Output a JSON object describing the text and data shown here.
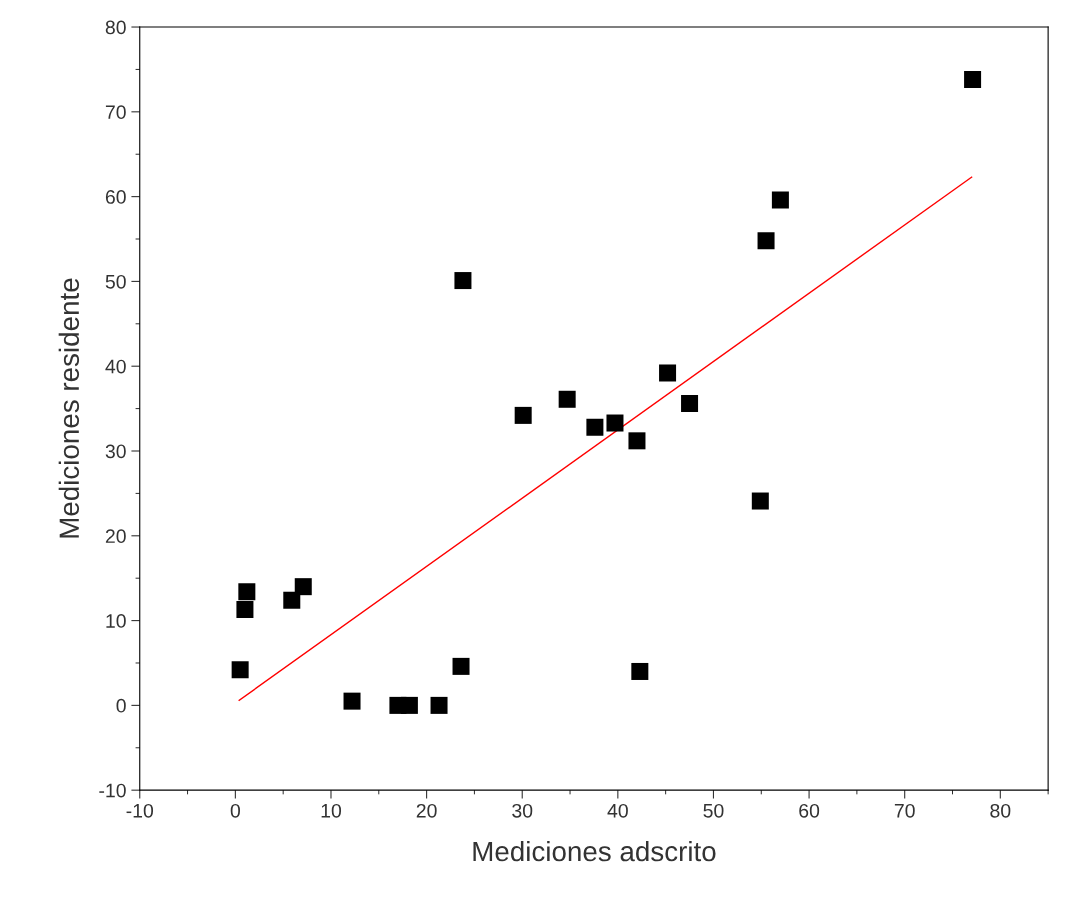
{
  "chart_data": {
    "type": "scatter",
    "xlabel": "Mediciones adscrito",
    "ylabel": "Mediciones residente",
    "xlim": [
      -10,
      85
    ],
    "ylim": [
      -10,
      80
    ],
    "xticks": [
      -10,
      0,
      10,
      20,
      30,
      40,
      50,
      60,
      70,
      80
    ],
    "yticks": [
      -10,
      0,
      10,
      20,
      30,
      40,
      50,
      60,
      70,
      80
    ],
    "grid": false,
    "legend": false,
    "series": [
      {
        "marker": "square",
        "color": "#000000",
        "x": [
          0.5,
          1.0,
          1.2,
          5.9,
          7.1,
          12.2,
          17.0,
          18.2,
          21.3,
          23.6,
          23.8,
          30.1,
          34.7,
          37.6,
          39.7,
          42.0,
          42.3,
          45.2,
          47.5,
          54.9,
          55.5,
          57.0,
          77.1
        ],
        "values": [
          4.2,
          11.3,
          13.4,
          12.4,
          14.0,
          0.5,
          0,
          0,
          0,
          4.6,
          50.1,
          34.2,
          36.1,
          32.8,
          33.3,
          31.2,
          4.0,
          39.2,
          35.6,
          24.1,
          54.8,
          59.6,
          73.8
        ]
      },
      {
        "type": "line",
        "marker": "none",
        "color": "#ff0000",
        "x": [
          0.4,
          77.0
        ],
        "values": [
          0.6,
          62.3
        ]
      }
    ]
  }
}
